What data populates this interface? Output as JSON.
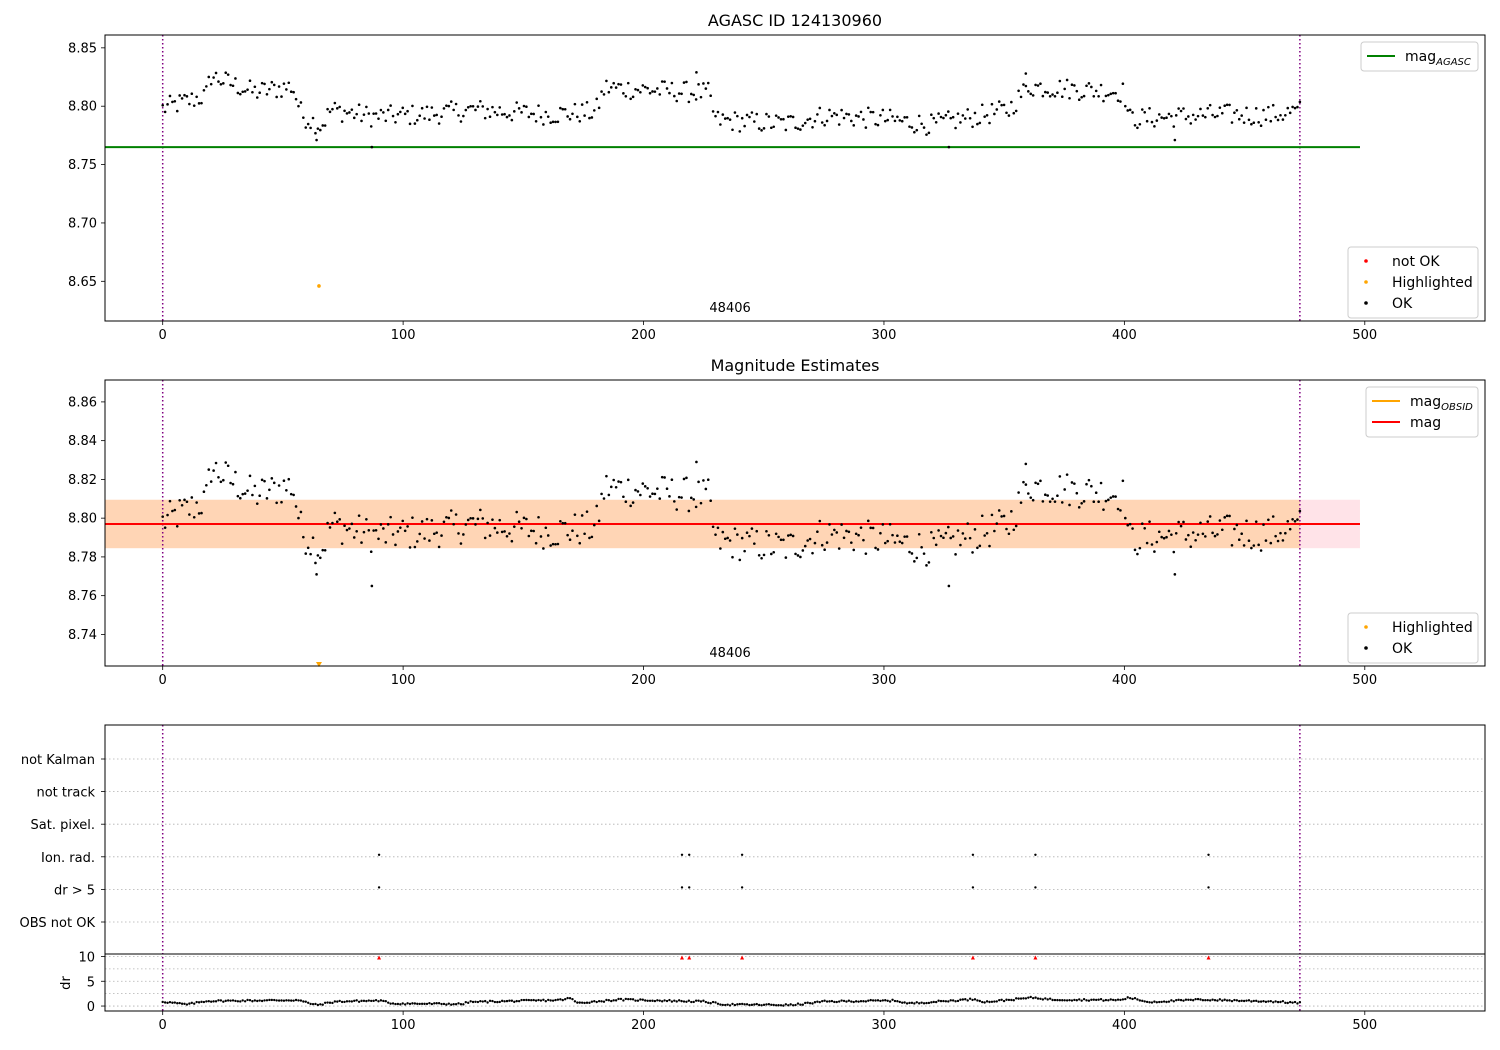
{
  "colors": {
    "ok": "#000000",
    "not_ok": "#ff0000",
    "highlighted": "#ffa500",
    "mag_agasc": "#008000",
    "mag_obsid": "#ffa500",
    "mag": "#ff0000",
    "obs_band": "#ffa500",
    "mag_band": "#ffc0cb",
    "boundary": "#800080"
  },
  "chart_data": [
    {
      "id": "panel1",
      "type": "scatter",
      "title": "AGASC ID 124130960",
      "xlim": [
        -24,
        550
      ],
      "ylim": [
        8.616,
        8.861
      ],
      "xticks": [
        0,
        100,
        200,
        300,
        400,
        500
      ],
      "yticks": [
        8.65,
        8.7,
        8.75,
        8.8,
        8.85
      ],
      "ytick_labels": [
        "8.65",
        "8.70",
        "8.75",
        "8.80",
        "8.85"
      ],
      "obsid_boundaries": [
        0,
        473
      ],
      "obsid_label": {
        "text": "48406",
        "x": 236
      },
      "hlines": [
        {
          "name": "mag_AGASC",
          "y": 8.765,
          "x": [
            -24,
            498
          ],
          "color": "#008000"
        }
      ],
      "highlighted_points": [
        {
          "x": 65,
          "y": 8.646
        }
      ],
      "ok_trend": [
        [
          0,
          8.798
        ],
        [
          18,
          8.809
        ],
        [
          20,
          8.826
        ],
        [
          38,
          8.812
        ],
        [
          54,
          8.817
        ],
        [
          58,
          8.792
        ],
        [
          66,
          8.783
        ],
        [
          70,
          8.797
        ],
        [
          88,
          8.791
        ],
        [
          110,
          8.793
        ],
        [
          130,
          8.797
        ],
        [
          160,
          8.793
        ],
        [
          180,
          8.795
        ],
        [
          184,
          8.816
        ],
        [
          220,
          8.812
        ],
        [
          227,
          8.811
        ],
        [
          230,
          8.788
        ],
        [
          260,
          8.785
        ],
        [
          275,
          8.792
        ],
        [
          300,
          8.789
        ],
        [
          320,
          8.784
        ],
        [
          340,
          8.792
        ],
        [
          352,
          8.797
        ],
        [
          360,
          8.817
        ],
        [
          400,
          8.812
        ],
        [
          402,
          8.789
        ],
        [
          440,
          8.793
        ],
        [
          460,
          8.792
        ],
        [
          473,
          8.796
        ]
      ],
      "extra_ok_points": [
        [
          64,
          8.771
        ],
        [
          87,
          8.765
        ],
        [
          222,
          8.829
        ],
        [
          359,
          8.828
        ],
        [
          421,
          8.771
        ],
        [
          327,
          8.765
        ]
      ],
      "legends": [
        {
          "position": "top-right",
          "entries": [
            {
              "label": "mag",
              "sub": "AGASC",
              "kind": "line",
              "color": "#008000"
            }
          ]
        },
        {
          "position": "lower-right",
          "entries": [
            {
              "label": "not OK",
              "kind": "dot",
              "color": "#ff0000"
            },
            {
              "label": "Highlighted",
              "kind": "dot",
              "color": "#ffa500"
            },
            {
              "label": "OK",
              "kind": "dot",
              "color": "#000000"
            }
          ]
        }
      ]
    },
    {
      "id": "panel2",
      "type": "scatter",
      "title": "Magnitude Estimates",
      "xlim": [
        -24,
        550
      ],
      "ylim": [
        8.7237,
        8.8713
      ],
      "xticks": [
        0,
        100,
        200,
        300,
        400,
        500
      ],
      "yticks": [
        8.74,
        8.76,
        8.78,
        8.8,
        8.82,
        8.84,
        8.86
      ],
      "ytick_labels": [
        "8.74",
        "8.76",
        "8.78",
        "8.80",
        "8.82",
        "8.84",
        "8.86"
      ],
      "obsid_boundaries": [
        0,
        473
      ],
      "obsid_label": {
        "text": "48406",
        "x": 236
      },
      "mag_band": {
        "x": [
          -24,
          498
        ],
        "y": [
          8.7845,
          8.8095
        ]
      },
      "obsid_band": {
        "x": [
          -24,
          473
        ],
        "y": [
          8.7845,
          8.8095
        ]
      },
      "hlines": [
        {
          "name": "mag",
          "y": 8.797,
          "x": [
            -24,
            498
          ],
          "color": "#ff0000"
        }
      ],
      "highlighted_points": [
        {
          "x": 65,
          "y": 8.7245,
          "marker": "triangle-down"
        }
      ],
      "legends": [
        {
          "position": "top-right",
          "entries": [
            {
              "label": "mag",
              "sub": "OBSID",
              "kind": "line",
              "color": "#ffa500"
            },
            {
              "label": "mag",
              "kind": "line",
              "color": "#ff0000"
            }
          ]
        },
        {
          "position": "lower-right",
          "entries": [
            {
              "label": "Highlighted",
              "kind": "dot",
              "color": "#ffa500"
            },
            {
              "label": "OK",
              "kind": "dot",
              "color": "#000000"
            }
          ]
        }
      ]
    },
    {
      "id": "panel3",
      "type": "scatter",
      "xlim": [
        -24,
        550
      ],
      "xticks": [
        0,
        100,
        200,
        300,
        400,
        500
      ],
      "obsid_boundaries": [
        0,
        473
      ],
      "flag_rows": [
        "not Kalman",
        "not track",
        "Sat. pixel.",
        "Ion. rad.",
        "dr > 5",
        "OBS not OK"
      ],
      "flags": {
        "Ion. rad.": [
          90,
          216,
          219,
          241,
          337,
          363,
          435
        ],
        "dr > 5": [
          90,
          216,
          219,
          241,
          337,
          363,
          435
        ]
      },
      "dr": {
        "ylabel": "dr",
        "ylim": [
          -1,
          10.5
        ],
        "yticks": [
          0,
          5,
          10
        ],
        "ytick_labels": [
          "0",
          "5",
          "10"
        ],
        "outliers_clipped": [
          90,
          216,
          219,
          241,
          337,
          363,
          435
        ],
        "trend": [
          [
            0,
            0.9
          ],
          [
            10,
            0.3
          ],
          [
            18,
            1.0
          ],
          [
            56,
            1.2
          ],
          [
            64,
            0.2
          ],
          [
            72,
            0.9
          ],
          [
            90,
            1.1
          ],
          [
            96,
            0.5
          ],
          [
            125,
            0.4
          ],
          [
            127,
            0.8
          ],
          [
            165,
            1.2
          ],
          [
            170,
            1.6
          ],
          [
            172,
            0.6
          ],
          [
            190,
            1.3
          ],
          [
            225,
            0.9
          ],
          [
            234,
            0.3
          ],
          [
            262,
            0.2
          ],
          [
            275,
            0.9
          ],
          [
            305,
            1.1
          ],
          [
            310,
            0.5
          ],
          [
            338,
            1.4
          ],
          [
            342,
            0.8
          ],
          [
            362,
            1.7
          ],
          [
            370,
            1.3
          ],
          [
            398,
            1.2
          ],
          [
            402,
            1.7
          ],
          [
            410,
            0.8
          ],
          [
            432,
            1.3
          ],
          [
            463,
            0.9
          ],
          [
            473,
            0.6
          ]
        ]
      }
    }
  ]
}
